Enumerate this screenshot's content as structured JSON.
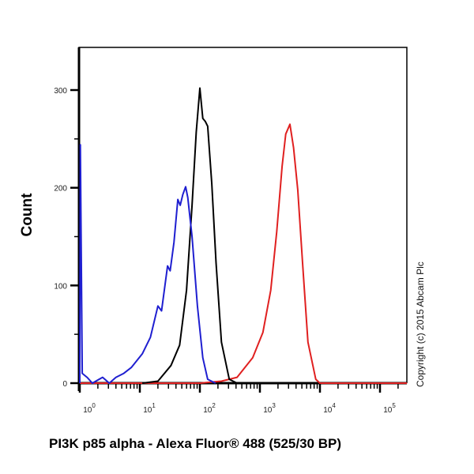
{
  "chart_data": {
    "type": "line",
    "title": "",
    "xlabel": "PI3K p85 alpha - Alexa Fluor® 488 (525/30 BP)",
    "ylabel": "Count",
    "xscale": "log",
    "xlim": [
      1,
      282000
    ],
    "ylim": [
      0,
      344
    ],
    "x_ticks": [
      {
        "base": "10",
        "exp": "0",
        "value": 1
      },
      {
        "base": "10",
        "exp": "1",
        "value": 10
      },
      {
        "base": "10",
        "exp": "2",
        "value": 100
      },
      {
        "base": "10",
        "exp": "3",
        "value": 1000
      },
      {
        "base": "10",
        "exp": "4",
        "value": 10000
      },
      {
        "base": "10",
        "exp": "5",
        "value": 100000
      }
    ],
    "y_ticks": [
      {
        "label": "0",
        "value": 0
      },
      {
        "label": "100",
        "value": 100
      },
      {
        "label": "200",
        "value": 200
      },
      {
        "label": "300",
        "value": 300
      }
    ],
    "grid": false,
    "legend": "none",
    "annotation": "Copyright (c) 2015 Abcam Plc",
    "series": [
      {
        "color": "#1f1fd0",
        "x": [
          1.0,
          1.02,
          1.1,
          1.32,
          1.62,
          2.4,
          3.1,
          4.0,
          5.4,
          7.2,
          11,
          15,
          20,
          23,
          29,
          32,
          37,
          43,
          47,
          52,
          58,
          63,
          74,
          91,
          112,
          135,
          182
        ],
        "y": [
          0,
          244,
          10,
          6,
          0,
          6,
          0,
          6,
          10,
          16,
          30,
          47,
          79,
          74,
          120,
          115,
          144,
          188,
          182,
          193,
          201,
          190,
          150,
          79,
          26,
          4,
          0
        ]
      },
      {
        "color": "#000000",
        "x": [
          11,
          20,
          33,
          46,
          60,
          74,
          87,
          100,
          112,
          123,
          135,
          158,
          186,
          229,
          309,
          417
        ],
        "y": [
          0,
          2,
          18,
          39,
          95,
          182,
          257,
          302,
          271,
          268,
          263,
          204,
          123,
          42,
          4,
          0
        ]
      },
      {
        "color": "#e02020",
        "x": [
          1,
          100,
          229,
          417,
          759,
          1122,
          1514,
          1905,
          2344,
          2692,
          3162,
          3631,
          4266,
          5129,
          6310,
          8511,
          10000,
          282000
        ],
        "y": [
          0,
          0,
          2,
          6,
          26,
          52,
          95,
          155,
          222,
          255,
          265,
          241,
          198,
          123,
          42,
          4,
          0,
          0
        ]
      }
    ]
  }
}
